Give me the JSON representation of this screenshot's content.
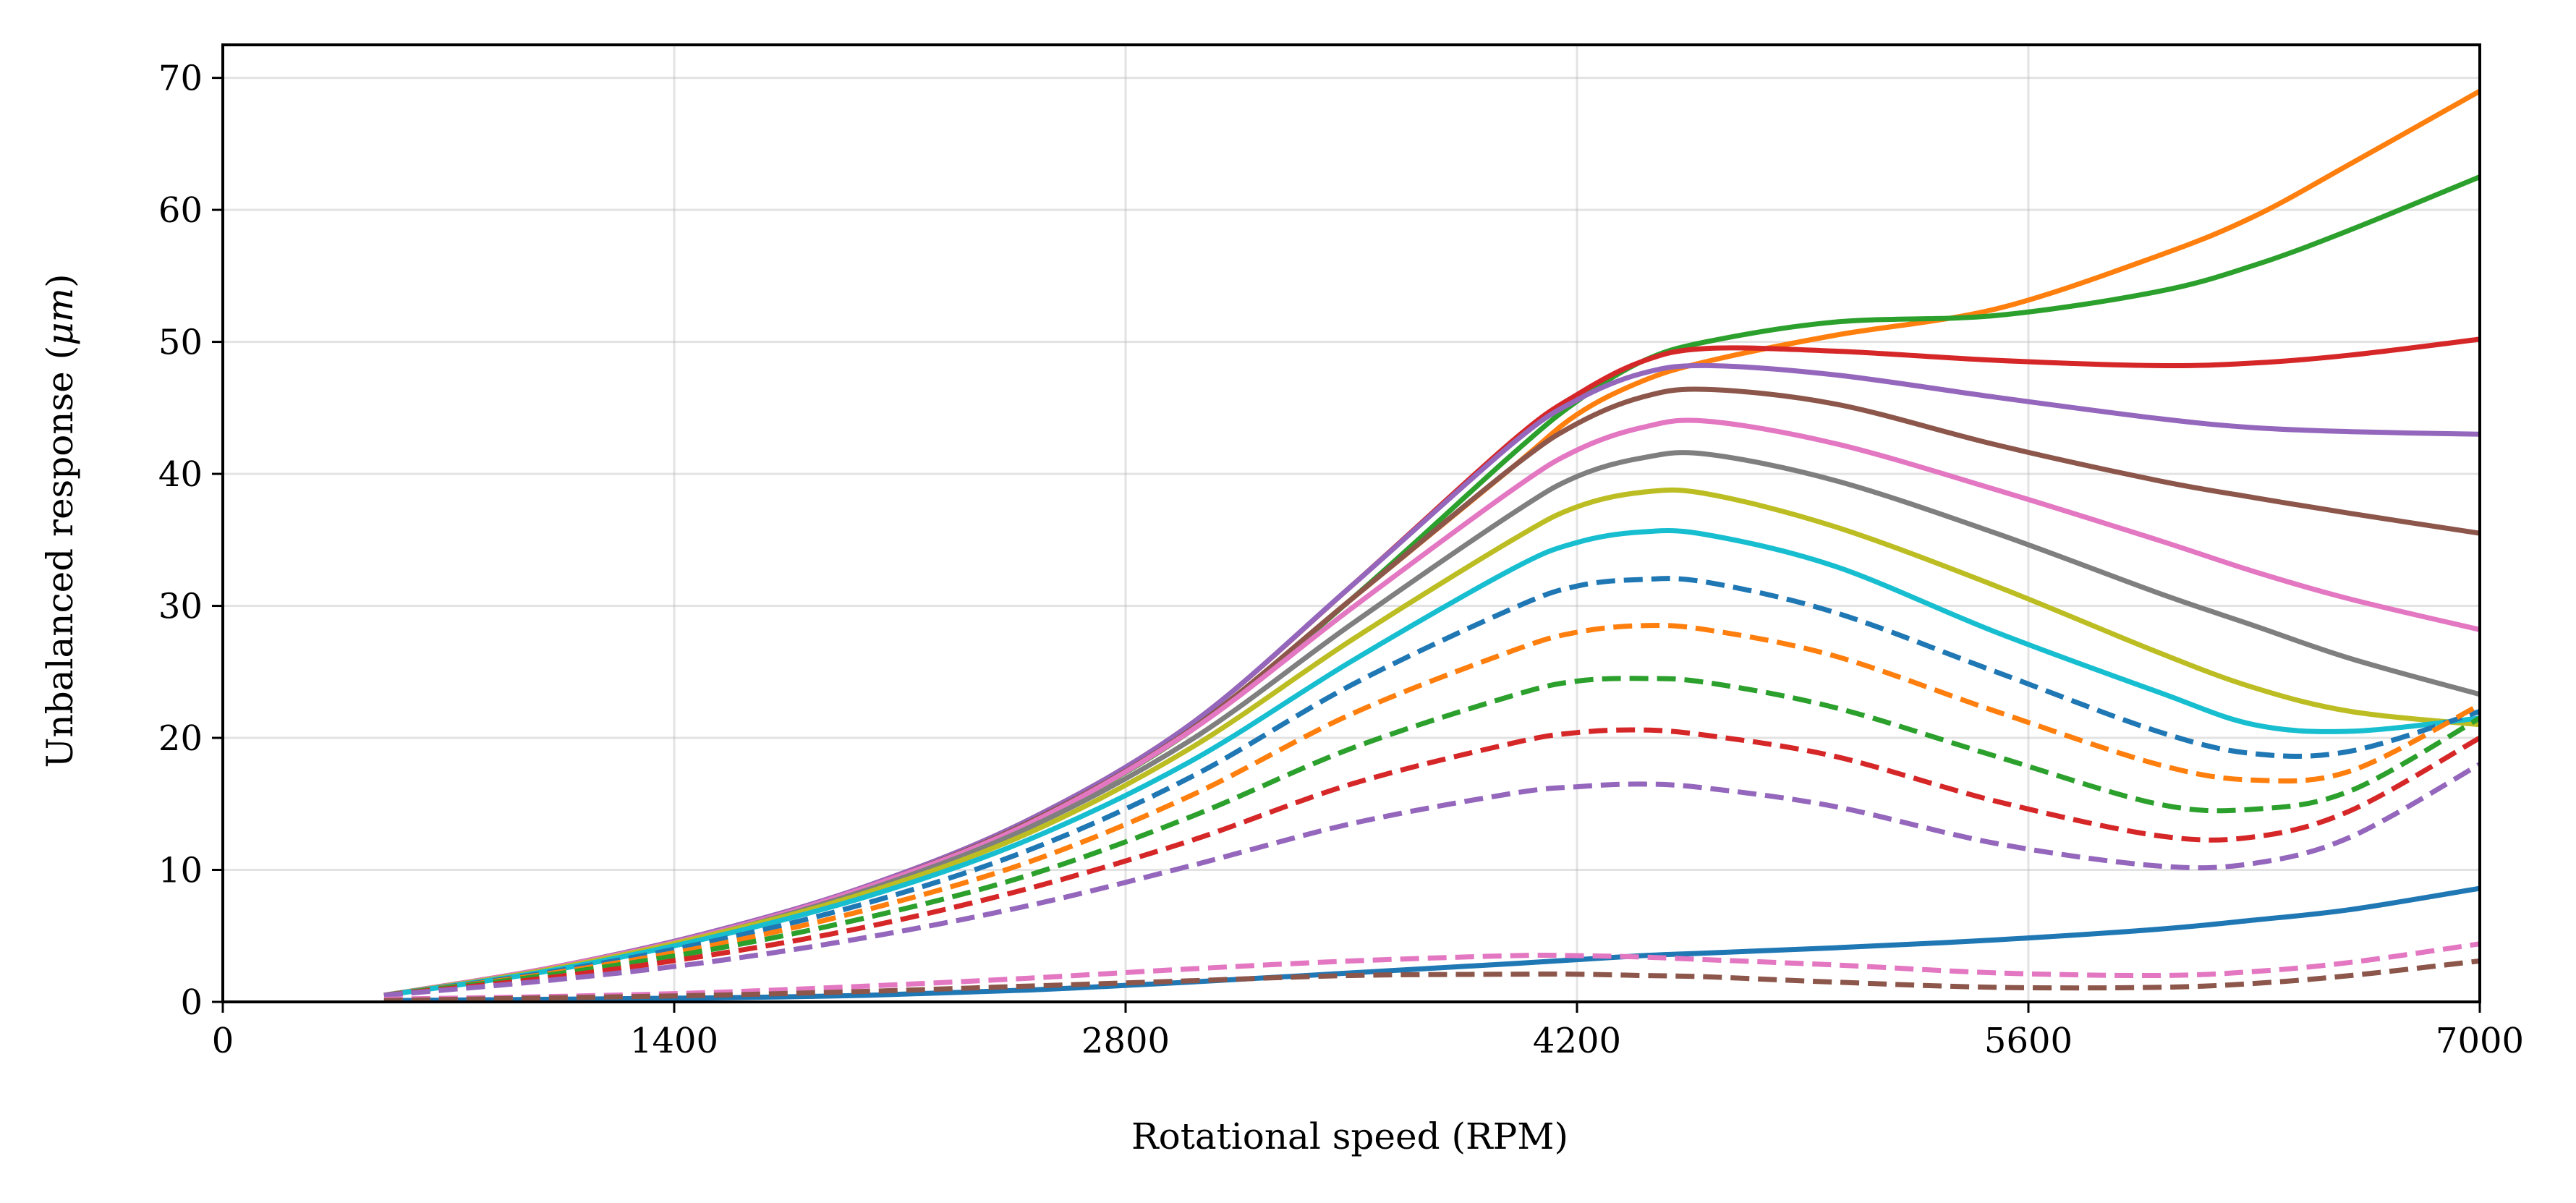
{
  "chart_data": {
    "type": "line",
    "title": "",
    "xlabel": "Rotational speed (RPM)",
    "ylabel_prefix": "Unbalanced response (",
    "ylabel_unit": "μm",
    "ylabel_suffix": ")",
    "xlim": [
      0,
      7000
    ],
    "ylim": [
      0,
      72.5
    ],
    "xticks": [
      0,
      1400,
      2800,
      4200,
      5600,
      7000
    ],
    "yticks": [
      0,
      10,
      20,
      30,
      40,
      50,
      60,
      70
    ],
    "grid": true,
    "legend": "none",
    "x": [
      500,
      1000,
      1500,
      2000,
      2500,
      3000,
      3500,
      4000,
      4200,
      4400,
      4600,
      5000,
      5500,
      6000,
      6300,
      6600,
      7000
    ],
    "series": [
      {
        "color": "#ff7f0e",
        "style": "solid",
        "values": [
          0.5,
          2.4,
          5.0,
          8.5,
          13.5,
          20.5,
          30.5,
          40.5,
          44.5,
          47.0,
          48.5,
          50.5,
          52.5,
          56.5,
          59.5,
          63.5,
          69.0
        ]
      },
      {
        "color": "#2ca02c",
        "style": "solid",
        "values": [
          0.5,
          2.4,
          5.0,
          8.5,
          13.5,
          20.5,
          30.5,
          41.5,
          45.5,
          48.5,
          50.0,
          51.5,
          52.0,
          53.8,
          55.8,
          58.5,
          62.5
        ]
      },
      {
        "color": "#d62728",
        "style": "solid",
        "values": [
          0.5,
          2.5,
          5.2,
          8.8,
          13.8,
          21.0,
          31.5,
          42.5,
          46.0,
          48.5,
          49.5,
          49.3,
          48.6,
          48.2,
          48.4,
          49.0,
          50.2
        ]
      },
      {
        "color": "#9467bd",
        "style": "solid",
        "values": [
          0.5,
          2.5,
          5.2,
          8.8,
          13.8,
          21.0,
          31.5,
          42.3,
          45.6,
          47.6,
          48.2,
          47.5,
          45.8,
          44.2,
          43.5,
          43.2,
          43.0
        ]
      },
      {
        "color": "#8c564b",
        "style": "solid",
        "values": [
          0.5,
          2.5,
          5.1,
          8.7,
          13.6,
          20.6,
          30.5,
          40.5,
          43.8,
          45.8,
          46.4,
          45.3,
          42.2,
          39.5,
          38.2,
          37.0,
          35.5
        ]
      },
      {
        "color": "#e377c2",
        "style": "solid",
        "values": [
          0.5,
          2.5,
          5.1,
          8.7,
          13.5,
          20.5,
          29.8,
          38.8,
          41.8,
          43.5,
          44.0,
          42.3,
          38.8,
          35.0,
          32.6,
          30.5,
          28.2
        ]
      },
      {
        "color": "#7f7f7f",
        "style": "solid",
        "values": [
          0.5,
          2.4,
          5.0,
          8.5,
          13.2,
          19.8,
          28.6,
          37.0,
          39.8,
          41.2,
          41.5,
          39.5,
          35.5,
          31.0,
          28.5,
          26.0,
          23.3
        ]
      },
      {
        "color": "#bcbd22",
        "style": "solid",
        "values": [
          0.5,
          2.4,
          5.0,
          8.3,
          12.8,
          19.2,
          27.4,
          35.0,
          37.5,
          38.6,
          38.5,
          36.0,
          31.5,
          26.5,
          23.8,
          22.0,
          21.0
        ]
      },
      {
        "color": "#17becf",
        "style": "solid",
        "values": [
          0.5,
          2.3,
          4.8,
          8.0,
          12.3,
          18.2,
          25.8,
          32.8,
          34.8,
          35.6,
          35.4,
          33.0,
          28.0,
          23.5,
          21.0,
          20.5,
          21.5
        ]
      },
      {
        "color": "#1f77b4",
        "style": "dashed",
        "values": [
          0.5,
          2.2,
          4.5,
          7.5,
          11.5,
          17.0,
          24.0,
          29.8,
          31.5,
          32.0,
          31.8,
          29.5,
          25.0,
          20.5,
          18.8,
          19.0,
          22.0
        ]
      },
      {
        "color": "#ff7f0e",
        "style": "dashed",
        "values": [
          0.5,
          2.1,
          4.2,
          7.0,
          10.6,
          15.6,
          21.8,
          26.6,
          28.0,
          28.5,
          28.2,
          26.2,
          22.0,
          18.0,
          16.8,
          17.5,
          22.5
        ]
      },
      {
        "color": "#2ca02c",
        "style": "dashed",
        "values": [
          0.5,
          2.0,
          3.9,
          6.4,
          9.6,
          14.0,
          19.2,
          23.2,
          24.3,
          24.5,
          24.2,
          22.3,
          18.6,
          15.0,
          14.6,
          16.0,
          21.5
        ]
      },
      {
        "color": "#d62728",
        "style": "dashed",
        "values": [
          0.5,
          1.8,
          3.5,
          5.7,
          8.6,
          12.2,
          16.5,
          19.6,
          20.4,
          20.6,
          20.2,
          18.6,
          15.2,
          12.6,
          12.5,
          14.5,
          20.0
        ]
      },
      {
        "color": "#9467bd",
        "style": "dashed",
        "values": [
          0.5,
          1.6,
          3.0,
          4.9,
          7.3,
          10.3,
          13.5,
          15.8,
          16.3,
          16.5,
          16.2,
          14.8,
          12.0,
          10.3,
          10.5,
          12.5,
          18.0
        ]
      },
      {
        "color": "#1f77b4",
        "style": "solid",
        "values": [
          0.1,
          0.2,
          0.3,
          0.5,
          0.9,
          1.5,
          2.2,
          2.9,
          3.2,
          3.5,
          3.7,
          4.1,
          4.7,
          5.5,
          6.2,
          7.0,
          8.6
        ]
      },
      {
        "color": "#e377c2",
        "style": "dashed",
        "values": [
          0.2,
          0.4,
          0.7,
          1.2,
          1.8,
          2.5,
          3.1,
          3.5,
          3.5,
          3.4,
          3.2,
          2.8,
          2.2,
          2.0,
          2.3,
          3.0,
          4.4
        ]
      },
      {
        "color": "#8c564b",
        "style": "dashed",
        "values": [
          0.1,
          0.3,
          0.5,
          0.8,
          1.2,
          1.6,
          2.0,
          2.1,
          2.1,
          2.0,
          1.9,
          1.5,
          1.1,
          1.1,
          1.4,
          2.0,
          3.1
        ]
      }
    ]
  }
}
